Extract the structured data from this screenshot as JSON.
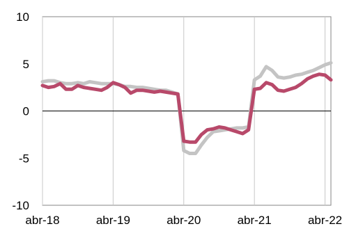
{
  "chart_data": {
    "type": "line",
    "title": "",
    "xlabel": "",
    "ylabel": "",
    "ylim": [
      -10,
      10
    ],
    "yticks": [
      10,
      5,
      0,
      -5,
      -10
    ],
    "xlim": [
      "2018-04",
      "2022-05"
    ],
    "xticks": [
      {
        "date": "2018-04",
        "label": "abr-18"
      },
      {
        "date": "2019-04",
        "label": "abr-19"
      },
      {
        "date": "2020-04",
        "label": "abr-20"
      },
      {
        "date": "2021-04",
        "label": "abr-21"
      },
      {
        "date": "2022-04",
        "label": "abr-22"
      }
    ],
    "grid": "vertical gridlines at x tick positions; zero reference line",
    "legend": "none",
    "x": [
      "2018-04",
      "2018-05",
      "2018-06",
      "2018-07",
      "2018-08",
      "2018-09",
      "2018-10",
      "2018-11",
      "2018-12",
      "2019-01",
      "2019-02",
      "2019-03",
      "2019-04",
      "2019-05",
      "2019-06",
      "2019-07",
      "2019-08",
      "2019-09",
      "2019-10",
      "2019-11",
      "2019-12",
      "2020-01",
      "2020-02",
      "2020-03",
      "2020-04",
      "2020-05",
      "2020-06",
      "2020-07",
      "2020-08",
      "2020-09",
      "2020-10",
      "2020-11",
      "2020-12",
      "2021-01",
      "2021-02",
      "2021-03",
      "2021-04",
      "2021-05",
      "2021-06",
      "2021-07",
      "2021-08",
      "2021-09",
      "2021-10",
      "2021-11",
      "2021-12",
      "2022-01",
      "2022-02",
      "2022-03",
      "2022-04",
      "2022-05"
    ],
    "series": [
      {
        "color": "#b8496a",
        "values": [
          2.7,
          2.5,
          2.6,
          2.9,
          2.3,
          2.3,
          2.7,
          2.5,
          2.4,
          2.3,
          2.2,
          2.5,
          3.0,
          2.8,
          2.5,
          1.9,
          2.2,
          2.2,
          2.1,
          2.0,
          2.1,
          2.0,
          1.9,
          1.8,
          -3.2,
          -3.3,
          -3.3,
          -2.5,
          -2.0,
          -1.9,
          -1.7,
          -1.8,
          -2.0,
          -2.2,
          -2.4,
          -2.0,
          2.3,
          2.4,
          3.0,
          2.8,
          2.2,
          2.1,
          2.3,
          2.5,
          2.9,
          3.4,
          3.7,
          3.9,
          3.8,
          3.3
        ]
      },
      {
        "color": "#c4c4c4",
        "values": [
          3.1,
          3.2,
          3.2,
          3.0,
          2.9,
          2.9,
          3.0,
          2.9,
          3.1,
          3.0,
          2.9,
          2.9,
          2.9,
          2.8,
          2.6,
          2.6,
          2.5,
          2.5,
          2.4,
          2.3,
          2.2,
          2.2,
          2.0,
          1.8,
          -4.2,
          -4.5,
          -4.5,
          -3.6,
          -2.8,
          -2.2,
          -2.1,
          -2.0,
          -1.9,
          -1.8,
          -1.8,
          -1.7,
          3.3,
          3.7,
          4.7,
          4.3,
          3.6,
          3.5,
          3.6,
          3.8,
          3.9,
          4.1,
          4.3,
          4.6,
          4.9,
          5.1
        ]
      }
    ]
  }
}
